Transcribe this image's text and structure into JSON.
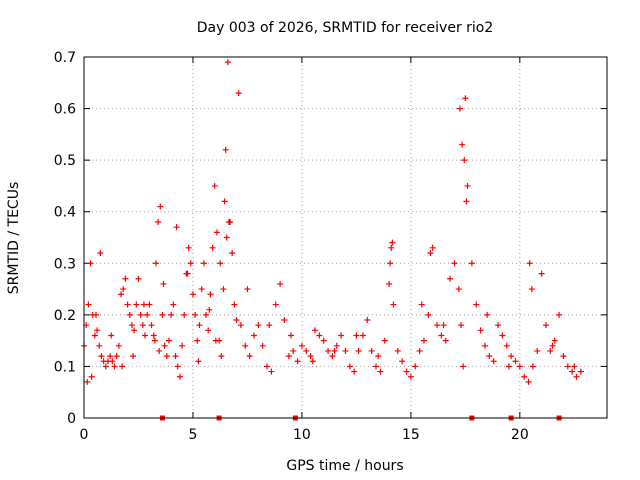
{
  "chart_data": {
    "type": "scatter",
    "title": "Day 003 of 2026, SRMTID for receiver rio2",
    "xlabel": "GPS time / hours",
    "ylabel": "SRMTID / TECUs",
    "xlim": [
      0,
      24
    ],
    "ylim": [
      0,
      0.7
    ],
    "x_ticks": [
      0,
      5,
      10,
      15,
      20
    ],
    "y_ticks": [
      0,
      0.1,
      0.2,
      0.3,
      0.4,
      0.5,
      0.6,
      0.7
    ],
    "x_tick_labels": [
      "0",
      "5",
      "10",
      "15",
      "20"
    ],
    "y_tick_labels": [
      "0",
      "0.1",
      "0.2",
      "0.3",
      "0.4",
      "0.5",
      "0.6",
      "0.7"
    ],
    "grid": true,
    "marker": "+",
    "color": "#ff0000",
    "series": [
      {
        "name": "SRMTID",
        "x": [
          0.0,
          0.1,
          0.2,
          0.3,
          0.4,
          0.5,
          0.6,
          0.7,
          0.8,
          0.9,
          1.0,
          1.1,
          1.2,
          1.3,
          1.4,
          1.5,
          1.6,
          1.7,
          1.8,
          1.9,
          2.0,
          2.1,
          2.2,
          2.3,
          2.4,
          2.5,
          2.6,
          2.7,
          2.8,
          2.9,
          3.0,
          3.1,
          3.2,
          3.3,
          3.4,
          3.5,
          3.6,
          3.7,
          3.8,
          3.9,
          4.0,
          4.1,
          4.2,
          4.3,
          4.4,
          4.5,
          4.6,
          4.7,
          4.8,
          4.9,
          5.0,
          5.1,
          5.2,
          5.3,
          5.4,
          5.5,
          5.6,
          5.7,
          5.8,
          5.9,
          6.0,
          6.1,
          6.2,
          6.3,
          6.4,
          6.5,
          6.6,
          6.7,
          6.8,
          6.9,
          7.0,
          7.2,
          7.4,
          7.6,
          7.8,
          8.0,
          8.2,
          8.4,
          8.6,
          8.8,
          9.0,
          9.2,
          9.4,
          9.6,
          9.8,
          10.0,
          10.2,
          10.4,
          10.6,
          10.8,
          11.0,
          11.2,
          11.4,
          11.6,
          11.8,
          12.0,
          12.2,
          12.4,
          12.6,
          12.8,
          13.0,
          13.2,
          13.4,
          13.6,
          13.8,
          14.0,
          14.1,
          14.2,
          14.4,
          14.6,
          14.8,
          15.0,
          15.2,
          15.4,
          15.6,
          15.8,
          16.0,
          16.2,
          16.4,
          16.6,
          16.8,
          17.0,
          17.2,
          17.3,
          17.4,
          17.5,
          17.6,
          17.8,
          18.0,
          18.2,
          18.4,
          18.6,
          18.8,
          19.0,
          19.2,
          19.4,
          19.6,
          19.8,
          20.0,
          20.2,
          20.4,
          20.6,
          20.8,
          21.0,
          21.2,
          21.4,
          21.6,
          21.8,
          22.0,
          22.2,
          22.4,
          22.6,
          22.8,
          0.15,
          0.35,
          0.55,
          0.75,
          1.25,
          1.75,
          2.25,
          2.75,
          3.25,
          3.45,
          3.65,
          4.25,
          4.75,
          5.25,
          5.75,
          6.05,
          6.25,
          6.45,
          6.55,
          6.65,
          7.1,
          7.5,
          8.5,
          9.5,
          10.5,
          11.5,
          12.5,
          13.5,
          14.05,
          14.15,
          15.5,
          15.9,
          16.5,
          17.25,
          17.35,
          17.45,
          17.55,
          18.5,
          19.5,
          20.45,
          20.55,
          21.5,
          22.5
        ],
        "y": [
          0.14,
          0.18,
          0.22,
          0.3,
          0.2,
          0.16,
          0.17,
          0.14,
          0.12,
          0.11,
          0.1,
          0.11,
          0.12,
          0.11,
          0.1,
          0.12,
          0.14,
          0.24,
          0.25,
          0.27,
          0.22,
          0.2,
          0.18,
          0.17,
          0.22,
          0.27,
          0.2,
          0.18,
          0.16,
          0.2,
          0.22,
          0.18,
          0.16,
          0.3,
          0.38,
          0.41,
          0.2,
          0.14,
          0.12,
          0.15,
          0.2,
          0.22,
          0.12,
          0.1,
          0.08,
          0.14,
          0.2,
          0.28,
          0.33,
          0.3,
          0.24,
          0.2,
          0.15,
          0.18,
          0.25,
          0.3,
          0.2,
          0.17,
          0.24,
          0.33,
          0.45,
          0.36,
          0.15,
          0.12,
          0.25,
          0.52,
          0.69,
          0.38,
          0.32,
          0.22,
          0.19,
          0.18,
          0.14,
          0.12,
          0.16,
          0.18,
          0.14,
          0.1,
          0.09,
          0.22,
          0.26,
          0.19,
          0.12,
          0.13,
          0.11,
          0.14,
          0.13,
          0.12,
          0.17,
          0.16,
          0.15,
          0.13,
          0.12,
          0.14,
          0.16,
          0.13,
          0.1,
          0.09,
          0.13,
          0.16,
          0.19,
          0.13,
          0.1,
          0.09,
          0.15,
          0.26,
          0.33,
          0.22,
          0.13,
          0.11,
          0.09,
          0.08,
          0.1,
          0.13,
          0.15,
          0.2,
          0.33,
          0.18,
          0.16,
          0.15,
          0.27,
          0.3,
          0.25,
          0.18,
          0.1,
          0.62,
          0.45,
          0.3,
          0.22,
          0.17,
          0.14,
          0.12,
          0.11,
          0.18,
          0.16,
          0.14,
          0.12,
          0.11,
          0.1,
          0.08,
          0.07,
          0.1,
          0.13,
          0.28,
          0.18,
          0.13,
          0.15,
          0.2,
          0.12,
          0.1,
          0.09,
          0.08,
          0.09,
          0.07,
          0.08,
          0.2,
          0.32,
          0.16,
          0.1,
          0.12,
          0.22,
          0.15,
          0.13,
          0.26,
          0.37,
          0.28,
          0.11,
          0.21,
          0.15,
          0.3,
          0.42,
          0.35,
          0.38,
          0.63,
          0.25,
          0.18,
          0.16,
          0.11,
          0.13,
          0.16,
          0.12,
          0.3,
          0.34,
          0.22,
          0.32,
          0.18,
          0.6,
          0.53,
          0.5,
          0.42,
          0.2,
          0.1,
          0.3,
          0.25,
          0.14,
          0.1
        ],
        "markers_at_zero": [
          3.6,
          6.2,
          9.7,
          17.8,
          19.6,
          21.8
        ]
      }
    ]
  }
}
